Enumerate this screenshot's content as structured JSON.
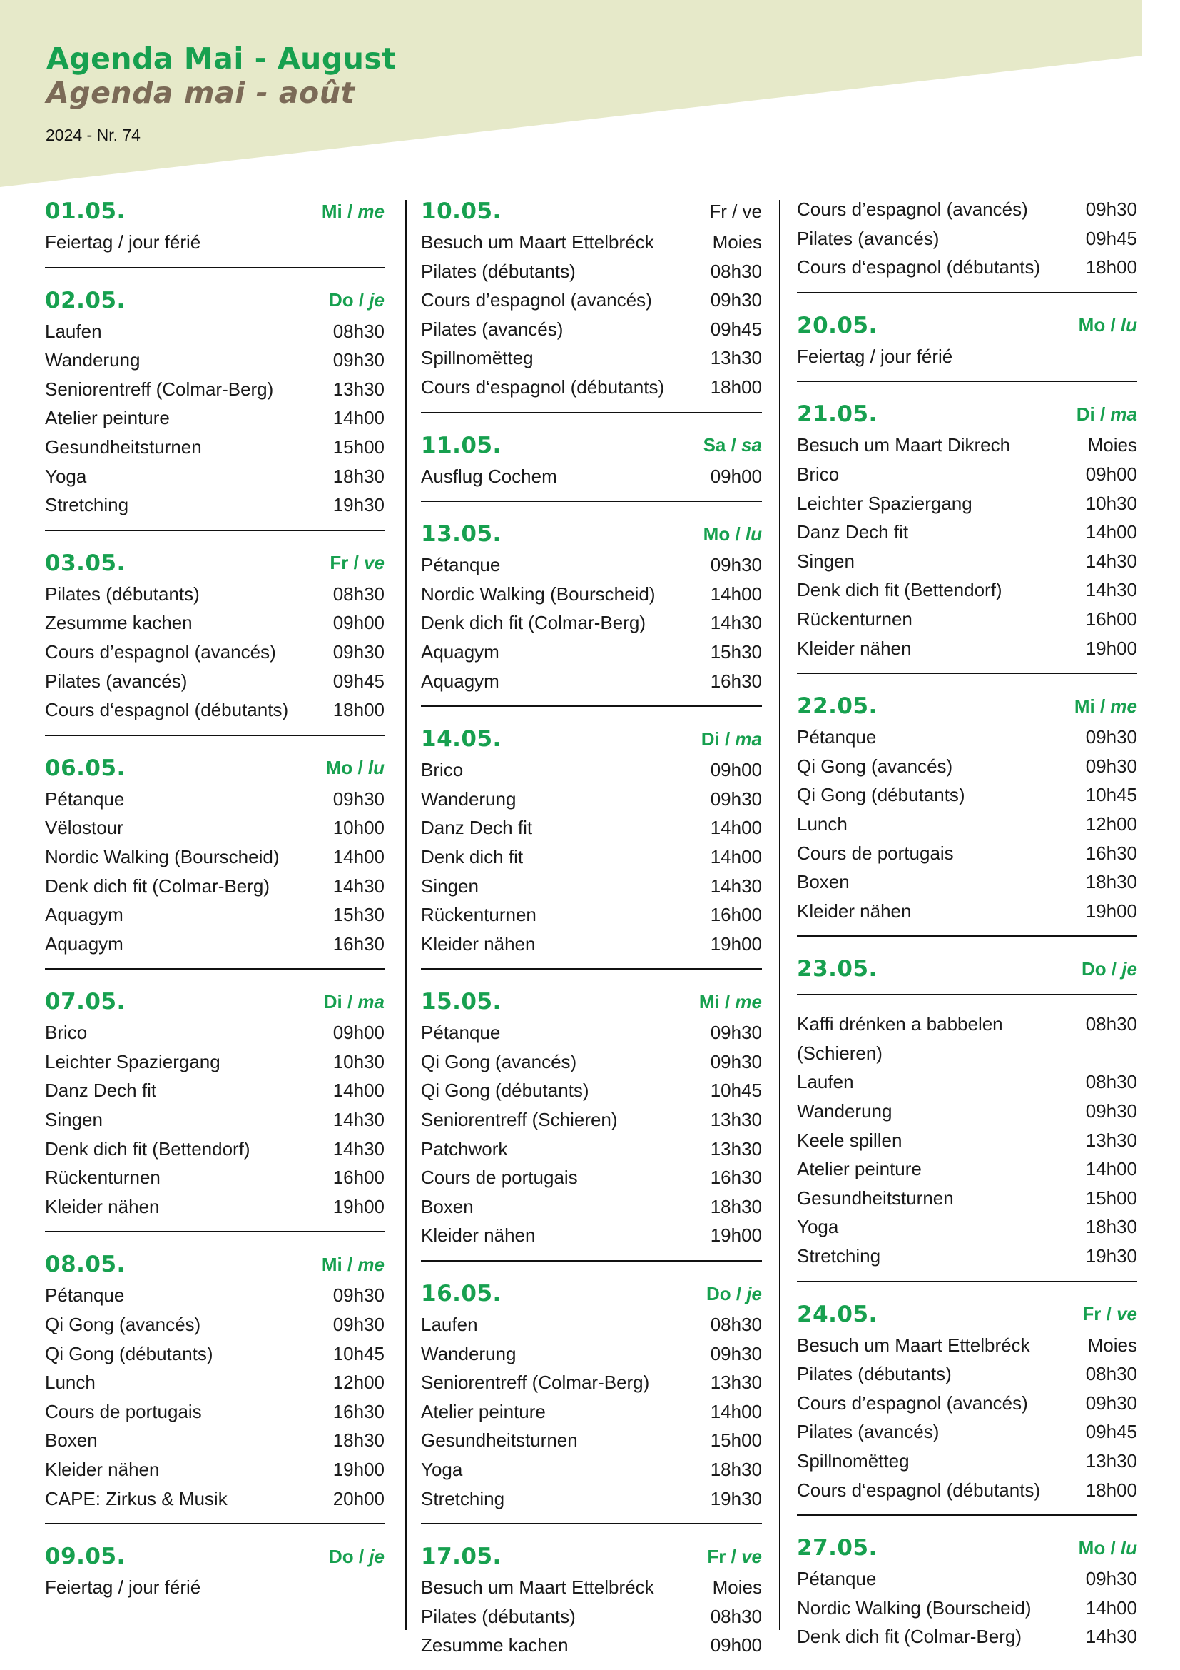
{
  "header": {
    "title": "Agenda Mai - August",
    "subtitle": "Agenda mai - août",
    "issue": "2024 - Nr. 74"
  },
  "colors": {
    "accent": "#17a04f",
    "subtitle": "#7b6a57",
    "banner": "#e6e9c9"
  },
  "columns": [
    {
      "blocks": [
        {
          "date": "01.05.",
          "day_de": "Mi",
          "day_fr": "me",
          "items": [
            {
              "name": "Feiertag / jour férié",
              "time": ""
            }
          ]
        },
        {
          "date": "02.05.",
          "day_de": "Do",
          "day_fr": "je",
          "items": [
            {
              "name": "Laufen",
              "time": "08h30"
            },
            {
              "name": "Wanderung",
              "time": "09h30"
            },
            {
              "name": "Seniorentreff (Colmar-Berg)",
              "time": "13h30"
            },
            {
              "name": "Atelier peinture",
              "time": "14h00"
            },
            {
              "name": "Gesundheitsturnen",
              "time": "15h00"
            },
            {
              "name": "Yoga",
              "time": "18h30"
            },
            {
              "name": "Stretching",
              "time": "19h30"
            }
          ]
        },
        {
          "date": "03.05.",
          "day_de": "Fr",
          "day_fr": "ve",
          "items": [
            {
              "name": "Pilates (débutants)",
              "time": "08h30"
            },
            {
              "name": "Zesumme kachen",
              "time": "09h00"
            },
            {
              "name": "Cours d’espagnol (avancés)",
              "time": "09h30"
            },
            {
              "name": "Pilates (avancés)",
              "time": "09h45"
            },
            {
              "name": "Cours d‘espagnol (débutants)",
              "time": "18h00"
            }
          ]
        },
        {
          "date": "06.05.",
          "day_de": "Mo",
          "day_fr": "lu",
          "items": [
            {
              "name": "Pétanque",
              "time": "09h30"
            },
            {
              "name": "Vëlostour",
              "time": "10h00"
            },
            {
              "name": "Nordic Walking (Bourscheid)",
              "time": "14h00"
            },
            {
              "name": "Denk dich fit (Colmar-Berg)",
              "time": "14h30"
            },
            {
              "name": "Aquagym",
              "time": "15h30"
            },
            {
              "name": "Aquagym",
              "time": "16h30"
            }
          ]
        },
        {
          "date": "07.05.",
          "day_de": "Di",
          "day_fr": "ma",
          "items": [
            {
              "name": "Brico",
              "time": "09h00"
            },
            {
              "name": "Leichter Spaziergang",
              "time": "10h30"
            },
            {
              "name": "Danz Dech fit",
              "time": "14h00"
            },
            {
              "name": "Singen",
              "time": "14h30"
            },
            {
              "name": "Denk dich fit (Bettendorf)",
              "time": "14h30"
            },
            {
              "name": "Rückenturnen",
              "time": "16h00"
            },
            {
              "name": "Kleider nähen",
              "time": "19h00"
            }
          ]
        },
        {
          "date": "08.05.",
          "day_de": "Mi",
          "day_fr": "me",
          "items": [
            {
              "name": "Pétanque",
              "time": "09h30"
            },
            {
              "name": "Qi Gong (avancés)",
              "time": "09h30"
            },
            {
              "name": "Qi Gong (débutants)",
              "time": "10h45"
            },
            {
              "name": "Lunch",
              "time": "12h00"
            },
            {
              "name": "Cours de portugais",
              "time": "16h30"
            },
            {
              "name": "Boxen",
              "time": "18h30"
            },
            {
              "name": "Kleider nähen",
              "time": "19h00"
            },
            {
              "name": "CAPE: Zirkus & Musik",
              "time": "20h00"
            }
          ]
        },
        {
          "date": "09.05.",
          "day_de": "Do",
          "day_fr": "je",
          "items": [
            {
              "name": "Feiertag / jour férié",
              "time": ""
            }
          ]
        }
      ]
    },
    {
      "blocks": [
        {
          "date": "10.05.",
          "day_de": "Fr",
          "day_fr": "ve",
          "plain": true,
          "items": [
            {
              "name": "Besuch um Maart Ettelbréck",
              "time": "Moies"
            },
            {
              "name": "Pilates (débutants)",
              "time": "08h30"
            },
            {
              "name": "Cours d’espagnol (avancés)",
              "time": "09h30"
            },
            {
              "name": "Pilates (avancés)",
              "time": "09h45"
            },
            {
              "name": "Spillnomëtteg",
              "time": "13h30"
            },
            {
              "name": "Cours d‘espagnol (débutants)",
              "time": "18h00"
            }
          ]
        },
        {
          "date": "11.05.",
          "day_de": "Sa",
          "day_fr": "sa",
          "items": [
            {
              "name": "Ausflug Cochem",
              "time": "09h00"
            }
          ]
        },
        {
          "date": "13.05.",
          "day_de": "Mo",
          "day_fr": "lu",
          "items": [
            {
              "name": "Pétanque",
              "time": "09h30"
            },
            {
              "name": "Nordic Walking (Bourscheid)",
              "time": "14h00"
            },
            {
              "name": "Denk dich fit (Colmar-Berg)",
              "time": "14h30"
            },
            {
              "name": "Aquagym",
              "time": "15h30"
            },
            {
              "name": "Aquagym",
              "time": "16h30"
            }
          ]
        },
        {
          "date": "14.05.",
          "day_de": "Di",
          "day_fr": "ma",
          "items": [
            {
              "name": "Brico",
              "time": "09h00"
            },
            {
              "name": "Wanderung",
              "time": "09h30"
            },
            {
              "name": "Danz Dech fit",
              "time": "14h00"
            },
            {
              "name": "Denk dich fit",
              "time": "14h00"
            },
            {
              "name": "Singen",
              "time": "14h30"
            },
            {
              "name": "Rückenturnen",
              "time": "16h00"
            },
            {
              "name": "Kleider nähen",
              "time": "19h00"
            }
          ]
        },
        {
          "date": "15.05.",
          "day_de": "Mi",
          "day_fr": "me",
          "items": [
            {
              "name": "Pétanque",
              "time": "09h30"
            },
            {
              "name": "Qi Gong (avancés)",
              "time": "09h30"
            },
            {
              "name": "Qi Gong (débutants)",
              "time": "10h45"
            },
            {
              "name": "Seniorentreff (Schieren)",
              "time": "13h30"
            },
            {
              "name": "Patchwork",
              "time": "13h30"
            },
            {
              "name": "Cours de portugais",
              "time": "16h30"
            },
            {
              "name": "Boxen",
              "time": "18h30"
            },
            {
              "name": "Kleider nähen",
              "time": "19h00"
            }
          ]
        },
        {
          "date": "16.05.",
          "day_de": "Do",
          "day_fr": "je",
          "items": [
            {
              "name": "Laufen",
              "time": "08h30"
            },
            {
              "name": "Wanderung",
              "time": "09h30"
            },
            {
              "name": "Seniorentreff (Colmar-Berg)",
              "time": "13h30"
            },
            {
              "name": "Atelier peinture",
              "time": "14h00"
            },
            {
              "name": "Gesundheitsturnen",
              "time": "15h00"
            },
            {
              "name": "Yoga",
              "time": "18h30"
            },
            {
              "name": "Stretching",
              "time": "19h30"
            }
          ]
        },
        {
          "date": "17.05.",
          "day_de": "Fr",
          "day_fr": "ve",
          "items": [
            {
              "name": "Besuch um Maart Ettelbréck",
              "time": "Moies"
            },
            {
              "name": "Pilates (débutants)",
              "time": "08h30"
            },
            {
              "name": "Zesumme kachen",
              "time": "09h00"
            }
          ]
        }
      ]
    },
    {
      "blocks": [
        {
          "continuation": true,
          "items": [
            {
              "name": "Cours d’espagnol (avancés)",
              "time": "09h30"
            },
            {
              "name": "Pilates (avancés)",
              "time": "09h45"
            },
            {
              "name": "Cours d‘espagnol (débutants)",
              "time": "18h00"
            }
          ]
        },
        {
          "date": "20.05.",
          "day_de": "Mo",
          "day_fr": "lu",
          "items": [
            {
              "name": "Feiertag / jour férié",
              "time": ""
            }
          ]
        },
        {
          "date": "21.05.",
          "day_de": "Di",
          "day_fr": "ma",
          "items": [
            {
              "name": "Besuch um Maart Dikrech",
              "time": "Moies"
            },
            {
              "name": "Brico",
              "time": "09h00"
            },
            {
              "name": "Leichter Spaziergang",
              "time": "10h30"
            },
            {
              "name": "Danz Dech fit",
              "time": "14h00"
            },
            {
              "name": "Singen",
              "time": "14h30"
            },
            {
              "name": "Denk dich fit (Bettendorf)",
              "time": "14h30"
            },
            {
              "name": "Rückenturnen",
              "time": "16h00"
            },
            {
              "name": "Kleider nähen",
              "time": "19h00"
            }
          ]
        },
        {
          "date": "22.05.",
          "day_de": "Mi",
          "day_fr": "me",
          "items": [
            {
              "name": "Pétanque",
              "time": "09h30"
            },
            {
              "name": "Qi Gong (avancés)",
              "time": "09h30"
            },
            {
              "name": "Qi Gong (débutants)",
              "time": "10h45"
            },
            {
              "name": "Lunch",
              "time": "12h00"
            },
            {
              "name": "Cours de portugais",
              "time": "16h30"
            },
            {
              "name": "Boxen",
              "time": "18h30"
            },
            {
              "name": "Kleider nähen",
              "time": "19h00"
            }
          ]
        },
        {
          "date": "23.05.",
          "day_de": "Do",
          "day_fr": "je",
          "rule_after_heading": true,
          "items": [
            {
              "name": "Kaffi drénken a babbelen (Schieren)",
              "time": "08h30"
            },
            {
              "name": "Laufen",
              "time": "08h30"
            },
            {
              "name": "Wanderung",
              "time": "09h30"
            },
            {
              "name": "Keele spillen",
              "time": "13h30"
            },
            {
              "name": "Atelier peinture",
              "time": "14h00"
            },
            {
              "name": "Gesundheitsturnen",
              "time": "15h00"
            },
            {
              "name": "Yoga",
              "time": "18h30"
            },
            {
              "name": "Stretching",
              "time": "19h30"
            }
          ]
        },
        {
          "date": "24.05.",
          "day_de": "Fr",
          "day_fr": "ve",
          "items": [
            {
              "name": "Besuch um Maart Ettelbréck",
              "time": "Moies"
            },
            {
              "name": "Pilates (débutants)",
              "time": "08h30"
            },
            {
              "name": "Cours d’espagnol (avancés)",
              "time": "09h30"
            },
            {
              "name": "Pilates (avancés)",
              "time": "09h45"
            },
            {
              "name": "Spillnomëtteg",
              "time": "13h30"
            },
            {
              "name": "Cours d‘espagnol (débutants)",
              "time": "18h00"
            }
          ]
        },
        {
          "date": "27.05.",
          "day_de": "Mo",
          "day_fr": "lu",
          "items": [
            {
              "name": "Pétanque",
              "time": "09h30"
            },
            {
              "name": "Nordic Walking (Bourscheid)",
              "time": "14h00"
            },
            {
              "name": "Denk dich fit (Colmar-Berg)",
              "time": "14h30"
            }
          ]
        }
      ]
    }
  ]
}
